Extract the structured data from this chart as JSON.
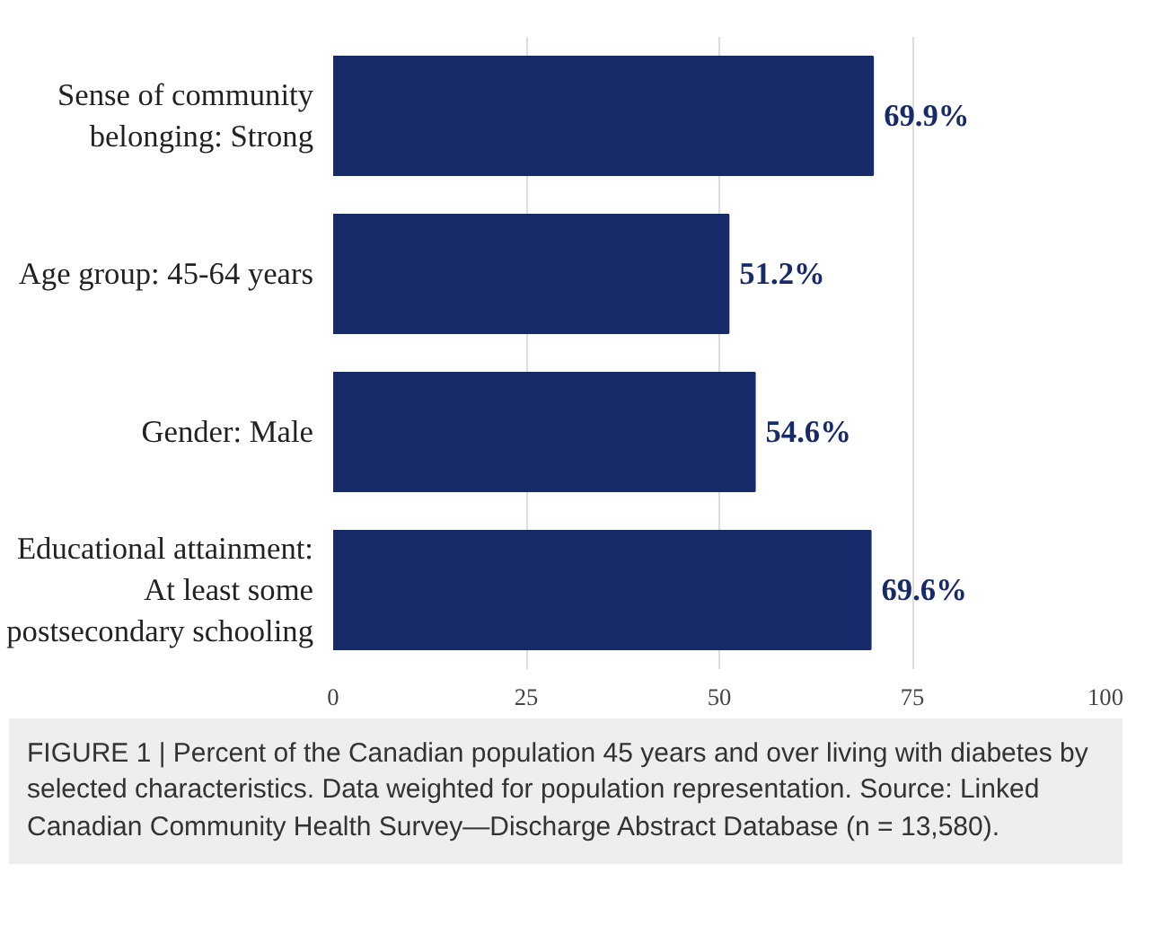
{
  "chart_data": {
    "type": "bar",
    "orientation": "horizontal",
    "categories": [
      "Sense of community\nbelonging: Strong",
      "Age group: 45-64 years",
      "Gender: Male",
      "Educational attainment:\nAt least some\npostsecondary schooling"
    ],
    "values": [
      69.9,
      51.2,
      54.6,
      69.6
    ],
    "value_labels": [
      "69.9%",
      "51.2%",
      "54.6%",
      "69.6%"
    ],
    "color": "#172a69",
    "xlim": [
      0,
      100
    ],
    "xticks": [
      0,
      25,
      50,
      75,
      100
    ],
    "grid": "x",
    "annotations": [
      "FIGURE 1 | Percent of the Canadian population 45 years and over living with diabetes by selected characteristics. Data weighted for population representation. Source: Linked Canadian Community Health Survey—Discharge Abstract Database (n = 13,580)."
    ]
  }
}
